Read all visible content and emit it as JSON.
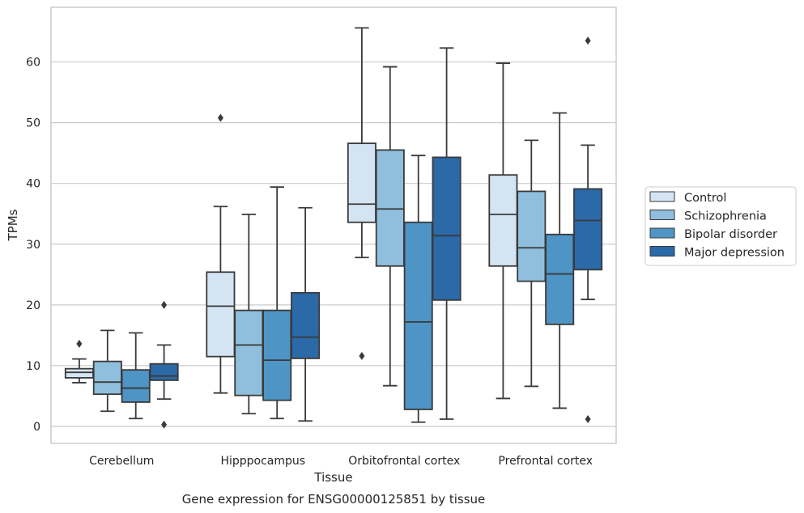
{
  "caption": "Gene expression for ENSG00000125851 by tissue",
  "chart_data": {
    "type": "box",
    "xlabel": "Tissue",
    "ylabel": "TPMs",
    "ylim": [
      -2.8,
      69.0
    ],
    "yticks": [
      0,
      10,
      20,
      30,
      40,
      50,
      60
    ],
    "grid": "horizontal",
    "legend_position": "right",
    "categories": [
      "Cerebellum",
      "Hipppocampus",
      "Orbitofrontal cortex",
      "Prefrontal cortex"
    ],
    "series": [
      {
        "name": "Control",
        "color": "#d4e4f3",
        "boxes": [
          {
            "whislo": 7.2,
            "q1": 8.0,
            "med": 8.9,
            "q3": 9.5,
            "whishi": 11.1,
            "fliers": [
              13.6
            ]
          },
          {
            "whislo": 5.5,
            "q1": 11.5,
            "med": 19.8,
            "q3": 25.4,
            "whishi": 36.2,
            "fliers": [
              50.8
            ]
          },
          {
            "whislo": 27.8,
            "q1": 33.6,
            "med": 36.6,
            "q3": 46.6,
            "whishi": 65.6,
            "fliers": [
              11.6
            ]
          },
          {
            "whislo": 4.6,
            "q1": 26.4,
            "med": 34.9,
            "q3": 41.4,
            "whishi": 59.8,
            "fliers": []
          }
        ]
      },
      {
        "name": "Schizophrenia",
        "color": "#8fbfdd",
        "boxes": [
          {
            "whislo": 2.5,
            "q1": 5.3,
            "med": 7.3,
            "q3": 10.7,
            "whishi": 15.8,
            "fliers": []
          },
          {
            "whislo": 2.1,
            "q1": 5.1,
            "med": 13.4,
            "q3": 19.1,
            "whishi": 34.9,
            "fliers": []
          },
          {
            "whislo": 6.7,
            "q1": 26.4,
            "med": 35.8,
            "q3": 45.5,
            "whishi": 59.2,
            "fliers": []
          },
          {
            "whislo": 6.6,
            "q1": 23.9,
            "med": 29.4,
            "q3": 38.7,
            "whishi": 47.1,
            "fliers": []
          }
        ]
      },
      {
        "name": "Bipolar disorder",
        "color": "#4e94c4",
        "boxes": [
          {
            "whislo": 1.3,
            "q1": 4.0,
            "med": 6.3,
            "q3": 9.3,
            "whishi": 15.4,
            "fliers": []
          },
          {
            "whislo": 1.3,
            "q1": 4.3,
            "med": 10.9,
            "q3": 19.1,
            "whishi": 39.4,
            "fliers": []
          },
          {
            "whislo": 0.7,
            "q1": 2.8,
            "med": 17.2,
            "q3": 33.6,
            "whishi": 44.6,
            "fliers": []
          },
          {
            "whislo": 3.0,
            "q1": 16.8,
            "med": 25.1,
            "q3": 31.6,
            "whishi": 51.6,
            "fliers": []
          }
        ]
      },
      {
        "name": "Major depression",
        "color": "#2b69a8",
        "boxes": [
          {
            "whislo": 4.5,
            "q1": 7.6,
            "med": 8.3,
            "q3": 10.3,
            "whishi": 13.4,
            "fliers": [
              20.0,
              0.3
            ]
          },
          {
            "whislo": 0.9,
            "q1": 11.2,
            "med": 14.7,
            "q3": 22.0,
            "whishi": 36.0,
            "fliers": []
          },
          {
            "whislo": 1.2,
            "q1": 20.8,
            "med": 31.4,
            "q3": 44.3,
            "whishi": 62.3,
            "fliers": []
          },
          {
            "whislo": 20.9,
            "q1": 25.8,
            "med": 33.9,
            "q3": 39.1,
            "whishi": 46.3,
            "fliers": [
              63.5,
              1.2
            ]
          }
        ]
      }
    ]
  }
}
